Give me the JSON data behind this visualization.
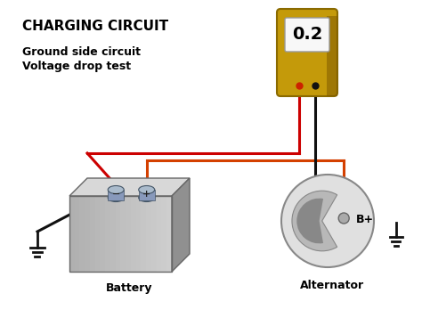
{
  "title": "CHARGING CIRCUIT",
  "subtitle_line1": "Ground side circuit",
  "subtitle_line2": "Voltage drop test",
  "meter_value": "0.2",
  "battery_label": "Battery",
  "alternator_label": "Alternator",
  "bplus_label": "B+",
  "bg_color": "#ffffff",
  "title_color": "#000000",
  "subtitle_color": "#000000",
  "wire_orange_color": "#d44000",
  "wire_black_color": "#111111",
  "wire_red_color": "#cc0000",
  "battery_front_color": "#c0c0c0",
  "battery_top_color": "#d8d8d8",
  "battery_right_color": "#909090",
  "battery_edge_color": "#666666",
  "neg_term_color": "#88aabb",
  "pos_term_color": "#88aabb",
  "meter_body_color": "#c49a0a",
  "meter_body_dark": "#8a6a00",
  "meter_screen_color": "#f8f8f8",
  "alternator_outer_color": "#e0e0e0",
  "alternator_dome_color": "#aaaaaa",
  "alternator_edge_color": "#888888",
  "bp_dot_color": "#aaaaaa",
  "ground_color": "#111111",
  "fig_w": 4.74,
  "fig_h": 3.66,
  "dpi": 100
}
